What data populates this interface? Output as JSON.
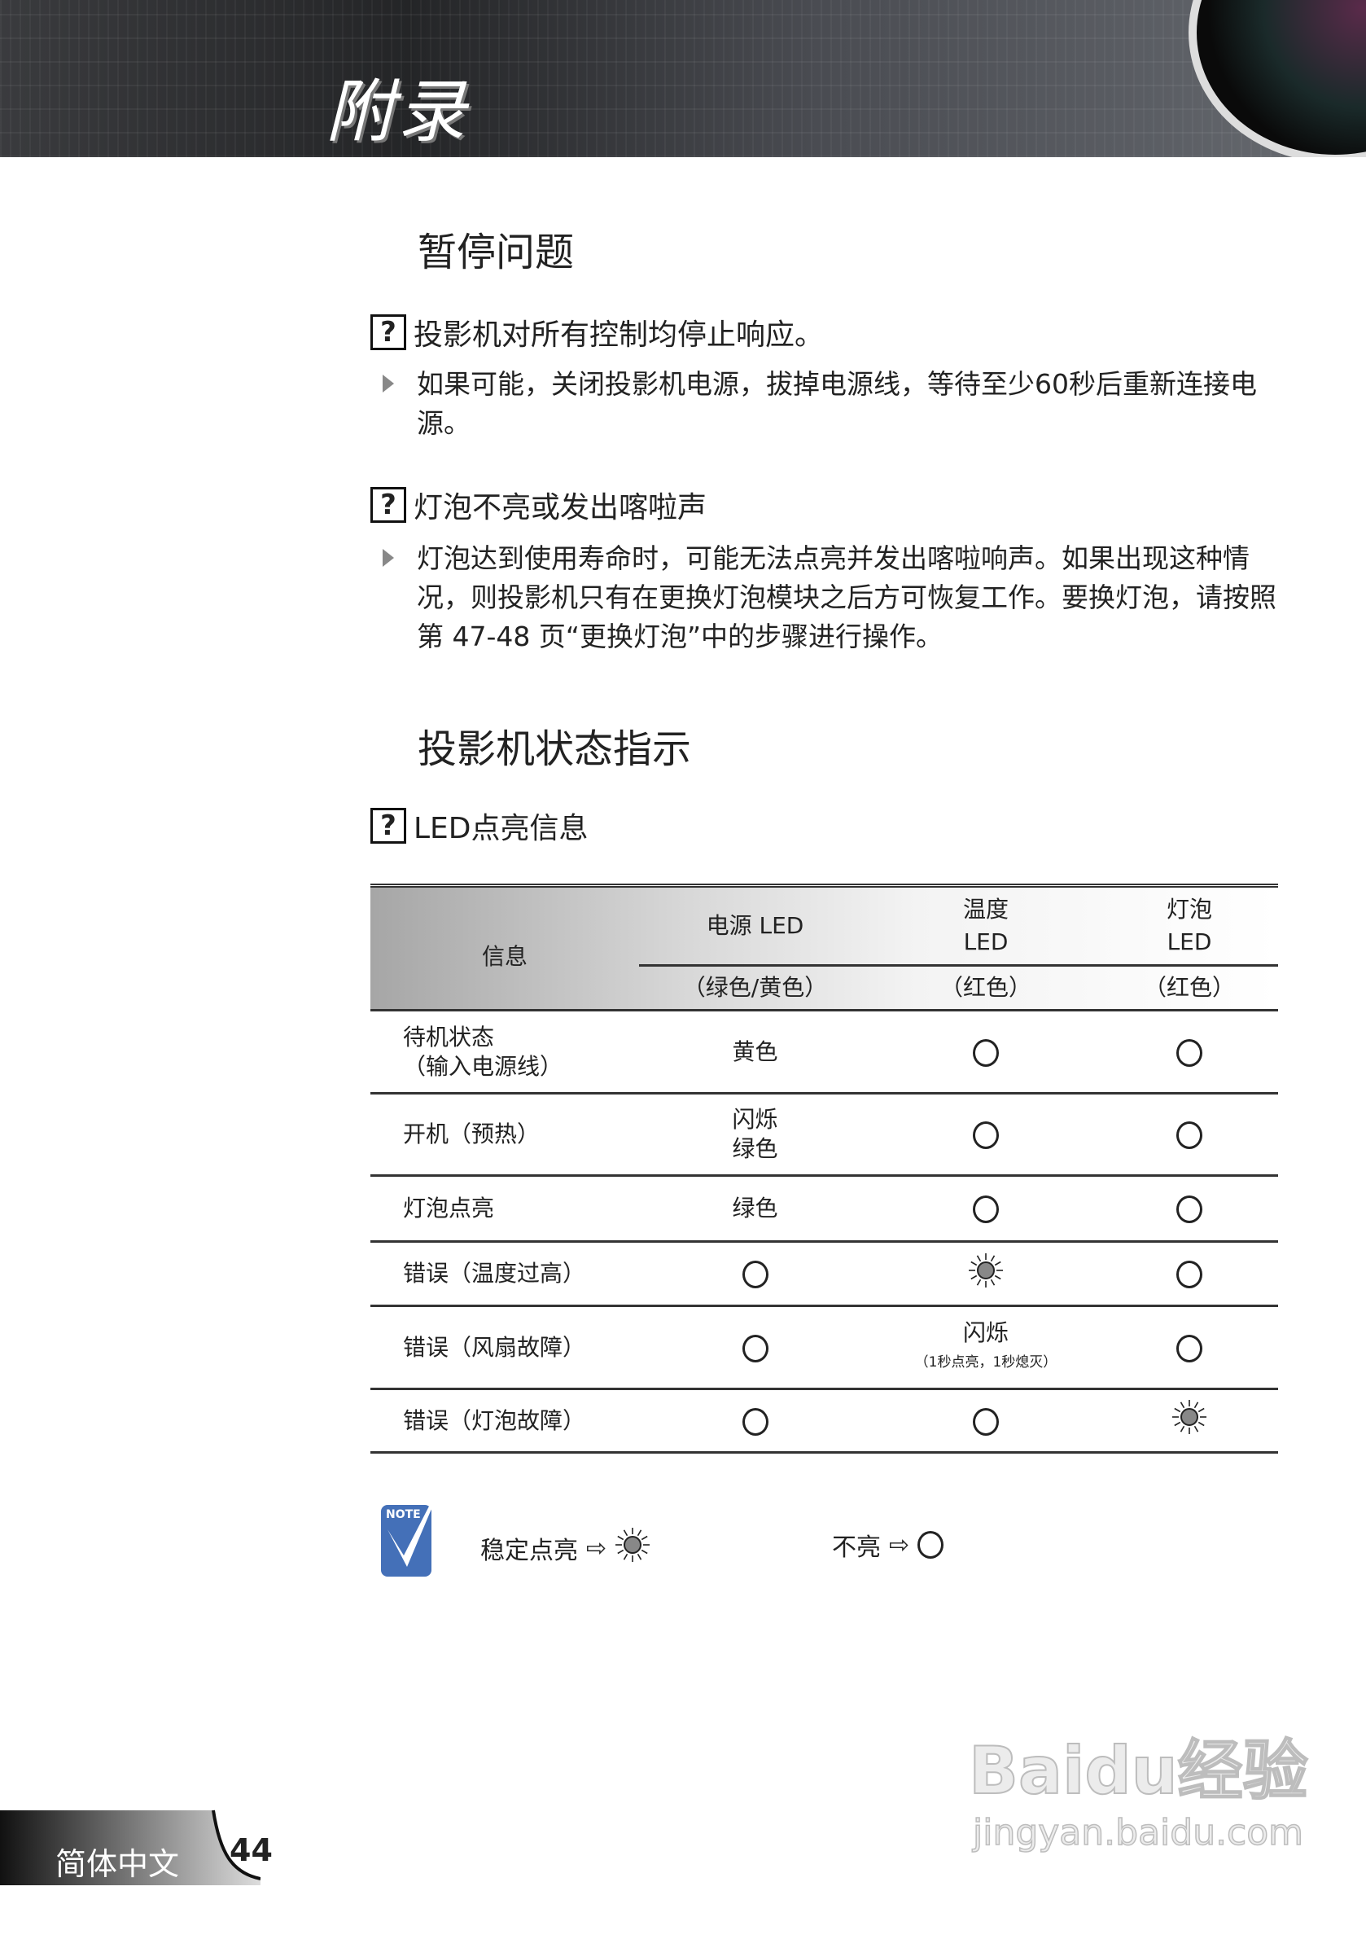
{
  "header": {
    "title": "附录"
  },
  "section1": {
    "title": "暂停问题",
    "items": [
      {
        "question": "投影机对所有控制均停止响应。",
        "answer": "如果可能，关闭投影机电源，拔掉电源线，等待至少60秒后重新连接电源。"
      },
      {
        "question": "灯泡不亮或发出喀啦声",
        "answer": "灯泡达到使用寿命时，可能无法点亮并发出喀啦响声。如果出现这种情况，则投影机只有在更换灯泡模块之后方可恢复工作。要换灯泡，请按照第 47-48 页“更换灯泡”中的步骤进行操作。"
      }
    ]
  },
  "section2": {
    "title": "投影机状态指示",
    "question": "LED点亮信息"
  },
  "question_icon": "?",
  "table": {
    "h_info": "信息",
    "h_power": "电源 LED",
    "h_temp1": "温度",
    "h_temp2": "LED",
    "h_lamp1": "灯泡",
    "h_lamp2": "LED",
    "h_power_sub": "（绿色/黄色）",
    "h_temp_sub": "（红色）",
    "h_lamp_sub": "（红色）",
    "rows": [
      {
        "info1": "待机状态",
        "info2": "（输入电源线）",
        "power": "黄色",
        "temp": "off",
        "lamp": "off"
      },
      {
        "info1": "开机（预热）",
        "power1": "闪烁",
        "power2": "绿色",
        "temp": "off",
        "lamp": "off"
      },
      {
        "info1": "灯泡点亮",
        "power": "绿色",
        "temp": "off",
        "lamp": "off"
      },
      {
        "info1": "错误（温度过高）",
        "power": "off",
        "temp": "on",
        "lamp": "off"
      },
      {
        "info1": "错误（风扇故障）",
        "power": "off",
        "temp1": "闪烁",
        "temp2": "（1秒点亮，1秒熄灭）",
        "lamp": "off"
      },
      {
        "info1": "错误（灯泡故障）",
        "power": "off",
        "temp": "off",
        "lamp": "on"
      }
    ]
  },
  "note": {
    "badge": "NOTE",
    "steady": "稳定点亮",
    "off": "不亮",
    "icons": [
      "sun-icon",
      "circle-icon"
    ],
    "color": "#4470b8"
  },
  "footer": {
    "language": "简体中文",
    "page": "44"
  },
  "watermark": {
    "brand": "Baidu经验",
    "url": "jingyan.baidu.com"
  }
}
